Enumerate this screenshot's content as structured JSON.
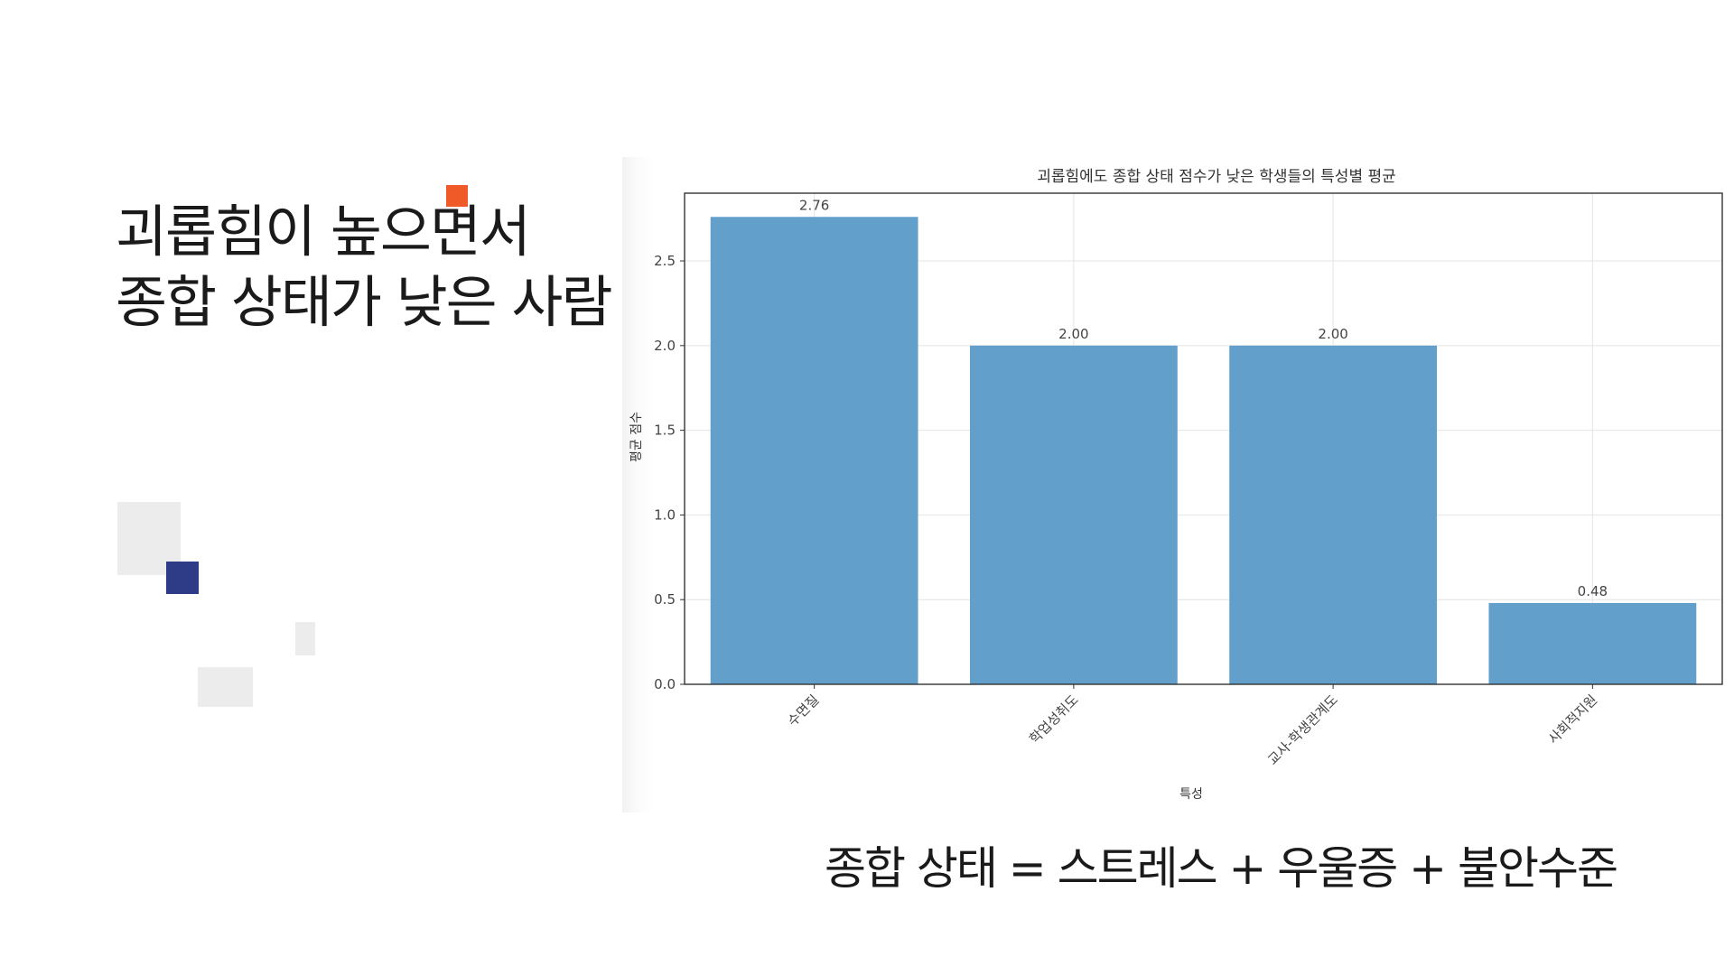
{
  "slide": {
    "title_lines": [
      "괴롭힘이 높으면서",
      "종합 상태가 낮은 사람"
    ],
    "formula": "종합 상태 = 스트레스 + 우울증 + 불안수준"
  },
  "colors": {
    "bar": "#62a0cb",
    "accent_orange": "#f05a28",
    "accent_navy": "#2e3b87",
    "deco_gray": "#ececec"
  },
  "chart_data": {
    "type": "bar",
    "title": "괴롭힘에도 종합 상태 점수가 낮은 학생들의 특성별 평균",
    "xlabel": "특성",
    "ylabel": "평균 점수",
    "categories": [
      "수면질",
      "학업성취도",
      "교사-학생관계도",
      "사회적지원"
    ],
    "values": [
      2.76,
      2.0,
      2.0,
      0.48
    ],
    "data_labels": [
      "2.76",
      "2.00",
      "2.00",
      "0.48"
    ],
    "yticks": [
      0.0,
      0.5,
      1.0,
      1.5,
      2.0,
      2.5
    ],
    "ytick_labels": [
      "0.0",
      "0.5",
      "1.0",
      "1.5",
      "2.0",
      "2.5"
    ],
    "ylim": [
      0,
      2.9
    ],
    "grid": true
  }
}
